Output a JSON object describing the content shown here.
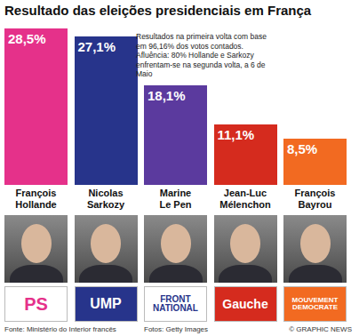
{
  "chart_data": {
    "type": "bar",
    "title": "Resultado das eleições presidenciais em França",
    "categories": [
      "François Hollande",
      "Nicolas Sarkozy",
      "Marine Le Pen",
      "Jean-Luc Mélenchon",
      "François Bayrou"
    ],
    "values": [
      28.5,
      27.1,
      18.1,
      11.1,
      8.5
    ],
    "value_labels": [
      "28,5%",
      "27,1%",
      "18,1%",
      "11,1%",
      "8,5%"
    ],
    "colors": [
      "#e5318a",
      "#27348b",
      "#5b3a9e",
      "#d52b1e",
      "#f26a21"
    ],
    "ylim": [
      0,
      30
    ],
    "tick_labels": false,
    "grid": false,
    "data_labels": true,
    "annotations": [
      "Resultados na primeira volta com base em 96,16% dos votos contados. Afluência: 80% Hollande e Sarkozy enfrentam-se na segunda volta, a 6 de Maio"
    ],
    "party_labels": [
      "PS",
      "UMP",
      "FRONT NATIONAL",
      "Gauche",
      "MOUVEMENT DEMOCRATE"
    ],
    "source": "Fonte: Ministério do Interior francês",
    "credits": "Fotos: Getty Images",
    "copyright": "© GRAPHIC NEWS"
  }
}
